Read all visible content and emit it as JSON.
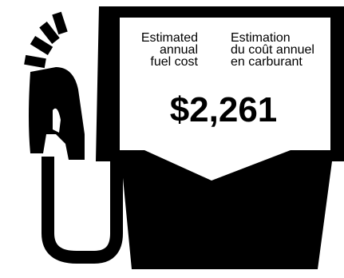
{
  "label_en": {
    "line1": "Estimated",
    "line2": "annual",
    "line3": "fuel cost"
  },
  "label_fr": {
    "line1": "Estimation",
    "line2": "du coût annuel",
    "line3": "en carburant"
  },
  "annual_fuel_cost": "$2,261",
  "colors": {
    "ink": "#000000",
    "paper": "#ffffff"
  },
  "icons": [
    "fuel-pump-icon",
    "fuel-nozzle-icon",
    "fuel-hose-icon"
  ]
}
